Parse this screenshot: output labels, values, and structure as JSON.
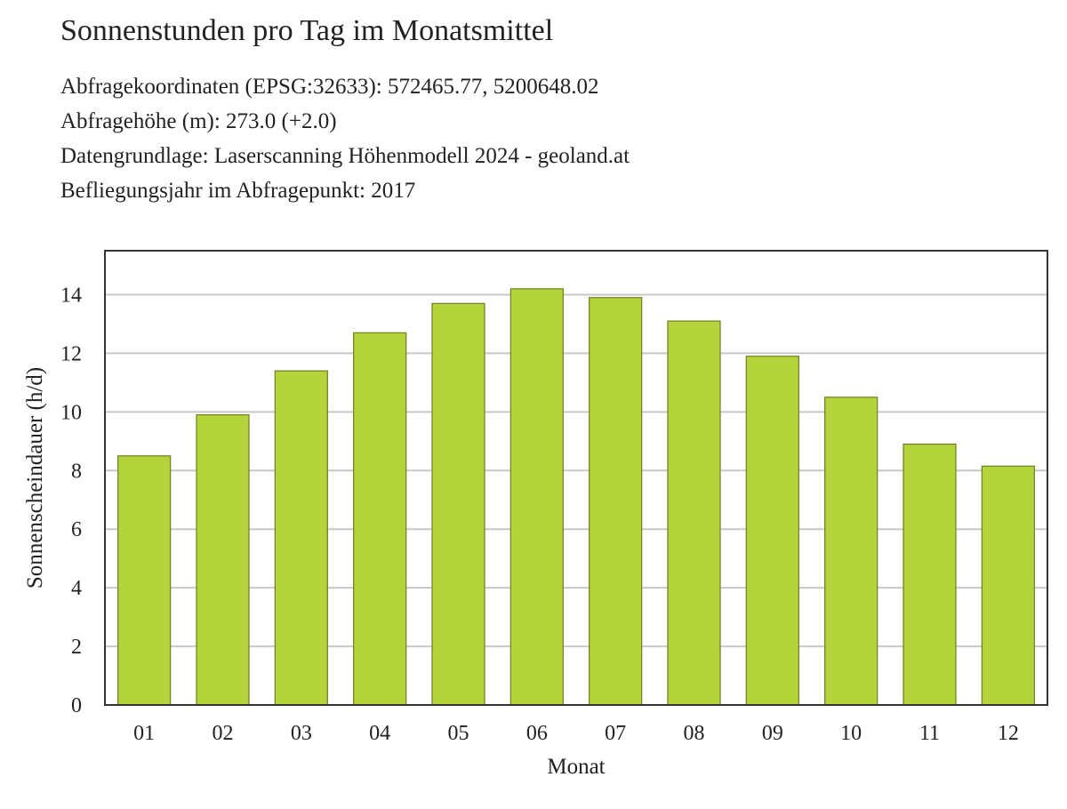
{
  "header": {
    "title": "Sonnenstunden pro Tag im Monatsmittel",
    "lines": [
      "Abfragekoordinaten (EPSG:32633): 572465.77, 5200648.02",
      "Abfragehöhe (m): 273.0 (+2.0)",
      "Datengrundlage: Laserscanning Höhenmodell 2024 - geoland.at",
      "Befliegungsjahr im Abfragepunkt: 2017"
    ]
  },
  "chart_data": {
    "type": "bar",
    "categories": [
      "01",
      "02",
      "03",
      "04",
      "05",
      "06",
      "07",
      "08",
      "09",
      "10",
      "11",
      "12"
    ],
    "values": [
      8.5,
      9.9,
      11.4,
      12.7,
      13.7,
      14.2,
      13.9,
      13.1,
      11.9,
      10.5,
      8.9,
      8.15
    ],
    "xlabel": "Monat",
    "ylabel": "Sonnenscheindauer (h/d)",
    "ylim": [
      0,
      15.5
    ],
    "yticks": [
      0,
      2,
      4,
      6,
      8,
      10,
      12,
      14
    ],
    "grid": true,
    "legend": "none",
    "colors": {
      "bar_fill": "#b5d43b",
      "bar_stroke": "#6e7f22",
      "grid": "#c8c8c8",
      "frame": "#333333"
    }
  }
}
